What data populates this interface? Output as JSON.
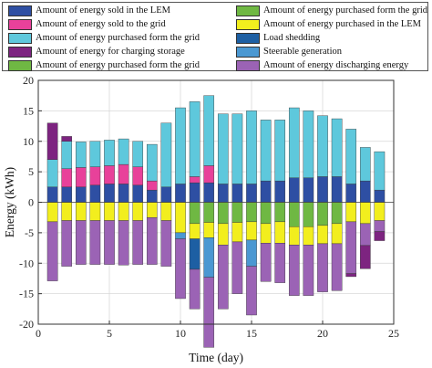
{
  "colors": {
    "sold_lem": "#2e4fa3",
    "sold_grid": "#e8419a",
    "purch_grid": "#5ec8dc",
    "charging": "#7d2480",
    "purch_grid2": "#6fb843",
    "purch_lem": "#f2ee1e",
    "load_shedding": "#1d5fa3",
    "steerable": "#4b98d2",
    "discharging": "#9b63b5"
  },
  "chart_data": {
    "type": "bar",
    "stacked": true,
    "xlabel": "Time (day)",
    "ylabel": "Energy (kWh)",
    "xlim": [
      0,
      25
    ],
    "ylim": [
      -20,
      20
    ],
    "xticks": [
      0,
      5,
      10,
      15,
      20,
      25
    ],
    "yticks": [
      -20,
      -15,
      -10,
      -5,
      0,
      5,
      10,
      15,
      20
    ],
    "grid": true,
    "x": [
      1,
      2,
      3,
      4,
      5,
      6,
      7,
      8,
      9,
      10,
      11,
      12,
      13,
      14,
      15,
      16,
      17,
      18,
      19,
      20,
      21,
      22,
      23,
      24
    ],
    "positive_series": [
      {
        "key": "sold_lem",
        "name": "Amount of energy sold in the LEM",
        "values": [
          2.5,
          2.5,
          2.5,
          2.8,
          3.0,
          3.0,
          2.8,
          2.0,
          2.5,
          3.0,
          3.2,
          3.2,
          3.0,
          3.0,
          3.0,
          3.5,
          3.5,
          4.0,
          4.0,
          4.2,
          4.2,
          3.0,
          3.5,
          2.0
        ]
      },
      {
        "key": "sold_grid",
        "name": "Amount of energy sold to the grid",
        "values": [
          0,
          3.0,
          3.2,
          3.0,
          3.0,
          3.2,
          3.0,
          1.5,
          0,
          0,
          1.0,
          2.8,
          0,
          0,
          0,
          0,
          0,
          0,
          0,
          0,
          0,
          0,
          0,
          0
        ]
      },
      {
        "key": "purch_grid",
        "name": "Amount of energy purchased form the grid",
        "values": [
          4.5,
          4.5,
          4.2,
          4.2,
          4.2,
          4.2,
          4.2,
          6.0,
          10.5,
          12.5,
          12.3,
          11.5,
          11.5,
          11.5,
          12.0,
          10.0,
          10.0,
          11.5,
          11.0,
          10.0,
          9.5,
          9.0,
          5.5,
          6.3
        ]
      },
      {
        "key": "charging",
        "name": "Amount of energy for charging storage",
        "values": [
          6.0,
          0.8,
          0,
          0,
          0,
          0,
          0,
          0,
          0,
          0,
          0,
          0,
          0,
          0,
          0,
          0,
          0,
          0,
          0,
          0,
          0,
          0,
          0,
          0
        ]
      }
    ],
    "negative_series": [
      {
        "key": "purch_grid2",
        "name": "Amount of energy purchased form the grid",
        "values": [
          0,
          0,
          0,
          0,
          0,
          0,
          0,
          0,
          0,
          0,
          3.5,
          3.3,
          3.5,
          3.3,
          3.2,
          3.5,
          3.2,
          4.0,
          4.0,
          3.8,
          3.5,
          0,
          0,
          0
        ]
      },
      {
        "key": "purch_lem",
        "name": "Amount of energy purchased in the LEM",
        "values": [
          3.2,
          3.0,
          3.0,
          3.0,
          3.0,
          3.0,
          3.0,
          2.5,
          3.0,
          5.0,
          2.5,
          2.5,
          3.5,
          3.2,
          3.0,
          3.2,
          3.5,
          3.0,
          3.0,
          3.0,
          3.3,
          3.2,
          3.5,
          3.0
        ]
      },
      {
        "key": "load_shedding",
        "name": "Load shedding",
        "values": [
          0,
          0,
          0,
          0,
          0,
          0,
          0,
          0,
          0,
          0,
          5.0,
          0,
          0,
          0,
          0,
          0,
          0,
          0,
          0,
          0,
          0,
          0,
          0,
          0
        ]
      },
      {
        "key": "steerable",
        "name": "Steerable generation",
        "values": [
          0,
          0,
          0,
          0,
          0,
          0,
          0,
          0,
          0,
          1.0,
          0,
          6.5,
          0,
          0,
          4.3,
          0,
          0,
          0,
          0,
          0,
          0,
          0,
          0,
          0
        ]
      },
      {
        "key": "discharging",
        "name": "Amount of energy discharging energy",
        "values": [
          9.7,
          7.5,
          7.2,
          7.2,
          7.2,
          7.3,
          7.2,
          7.7,
          7.5,
          9.8,
          6.5,
          11.5,
          10.5,
          8.5,
          8.0,
          6.3,
          6.5,
          8.3,
          8.3,
          7.9,
          7.7,
          8.5,
          3.6,
          1.8
        ]
      },
      {
        "key": "charging",
        "name": "Amount of energy for charging storage",
        "values": [
          0,
          0,
          0,
          0,
          0,
          0,
          0,
          0,
          0,
          0,
          0,
          0,
          0,
          0,
          0,
          0,
          0,
          0,
          0,
          0,
          0,
          0.5,
          3.8,
          1.5
        ]
      }
    ],
    "legend": {
      "placement": "top",
      "items": [
        {
          "key": "sold_lem",
          "label": "Amount of energy sold in the LEM"
        },
        {
          "key": "sold_grid",
          "label": "Amount of energy sold to the grid"
        },
        {
          "key": "purch_grid",
          "label": "Amount of energy purchased form the grid"
        },
        {
          "key": "charging",
          "label": "Amount of energy for charging storage"
        },
        {
          "key": "purch_grid2",
          "label": "Amount of energy purchased form the grid"
        },
        {
          "key": "purch_lem",
          "label": "Amount of energy purchased in the LEM"
        },
        {
          "key": "load_shedding",
          "label": "Load shedding"
        },
        {
          "key": "steerable",
          "label": "Steerable generation"
        },
        {
          "key": "discharging",
          "label": "Amount of energy discharging energy"
        }
      ]
    }
  }
}
